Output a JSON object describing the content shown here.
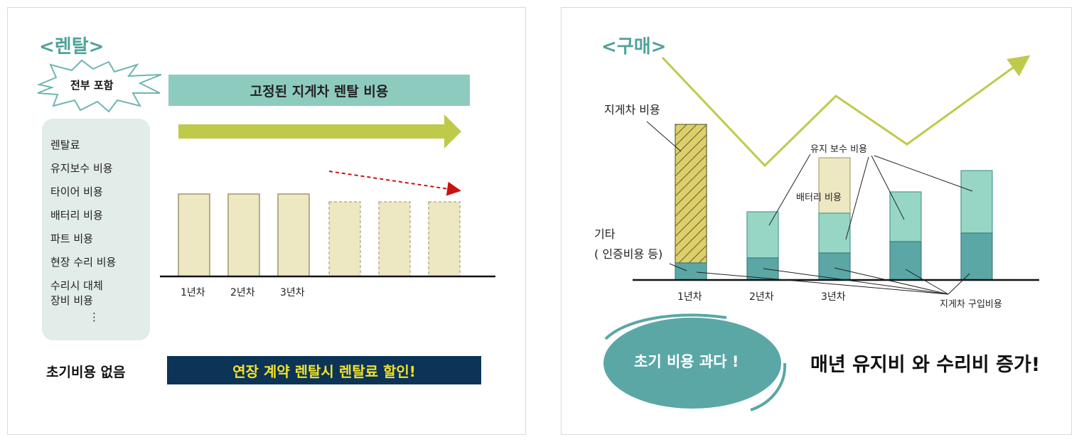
{
  "rental": {
    "title": "<렌탈>",
    "all_included": "전부 포함",
    "included_items": [
      "렌탈료",
      "유지보수 비용",
      "타이어 비용",
      "배터리 비용",
      "파트 비용",
      "현장 수리 비용",
      "수리시 대체",
      "장비 비용",
      "⋮"
    ],
    "fixed_cost_label": "고정된 지게차 렌탈 비용",
    "year_labels": [
      "1년차",
      "2년차",
      "3년차"
    ],
    "no_initial_cost": "초기비용 없음",
    "discount_banner": "연장 계약 렌탈시 렌탈료 할인!"
  },
  "purchase": {
    "title": "<구매>",
    "label_forklift_cost": "지게차 비용",
    "label_maintenance": "유지 보수 비용",
    "label_battery": "배터리 비용",
    "label_other_1": "기타",
    "label_other_2": "( 인증비용 등)",
    "label_purchase_cost": "지게차 구입비용",
    "year_labels": [
      "1년차",
      "2년차",
      "3년차"
    ],
    "initial_cost_bubble": "초기 비용 과다 !",
    "headline": "매년 유지비 와 수리비 증가!"
  },
  "colors": {
    "teal_title": "#4fa39b",
    "fixed_bar": "#8ecbbf",
    "olive_arrow": "#bfca4a",
    "beige_bar": "#ede7c2",
    "dark_navy": "#0b3457",
    "yellow_text": "#f3e12a",
    "red_dashed": "#cc1111",
    "teal_dark": "#5aa7a6",
    "teal_light": "#97d6c4",
    "hatch_yellow": "#ddd06a",
    "trend_line": "#bfca4a"
  }
}
